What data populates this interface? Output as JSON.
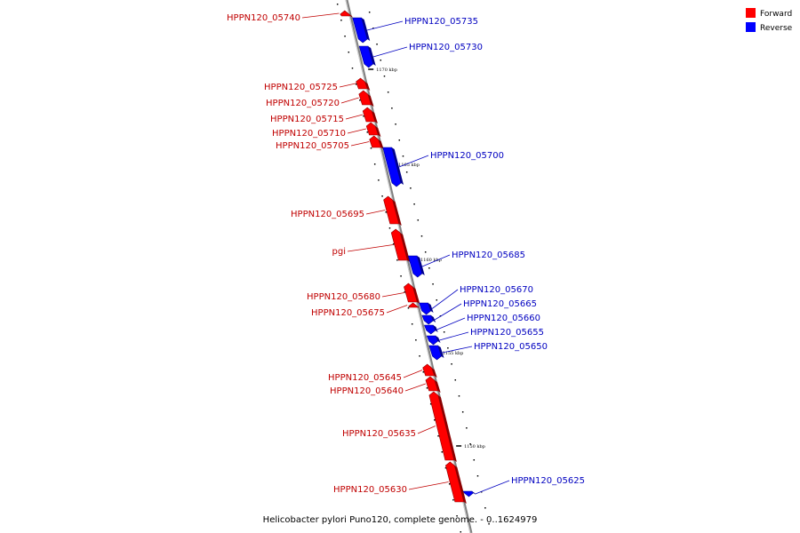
{
  "caption": "Helicobacter pylori Puno120, complete genome. - 0..1624979",
  "legend": {
    "items": [
      {
        "label": "Forward",
        "color": "#ff0000"
      },
      {
        "label": "Reverse",
        "color": "#0000ff"
      }
    ]
  },
  "colors": {
    "forward": "#ff0000",
    "forward_label": "#c00000",
    "reverse": "#0000ff",
    "reverse_label": "#0000c0",
    "backbone": "#808080"
  },
  "ticks": [
    {
      "label": "1170 kbp"
    },
    {
      "label": "1165 kbp"
    },
    {
      "label": "1160 kbp"
    },
    {
      "label": "1155 kbp"
    },
    {
      "label": "1150 kbp"
    }
  ],
  "genes": [
    {
      "label": "HPPN120_05740",
      "strand": "forward"
    },
    {
      "label": "HPPN120_05735",
      "strand": "reverse"
    },
    {
      "label": "HPPN120_05730",
      "strand": "reverse"
    },
    {
      "label": "HPPN120_05725",
      "strand": "forward"
    },
    {
      "label": "HPPN120_05720",
      "strand": "forward"
    },
    {
      "label": "HPPN120_05715",
      "strand": "forward"
    },
    {
      "label": "HPPN120_05710",
      "strand": "forward"
    },
    {
      "label": "HPPN120_05705",
      "strand": "forward"
    },
    {
      "label": "HPPN120_05700",
      "strand": "reverse"
    },
    {
      "label": "HPPN120_05695",
      "strand": "forward"
    },
    {
      "label": "pgi",
      "strand": "forward"
    },
    {
      "label": "HPPN120_05685",
      "strand": "reverse"
    },
    {
      "label": "HPPN120_05680",
      "strand": "forward"
    },
    {
      "label": "HPPN120_05675",
      "strand": "forward"
    },
    {
      "label": "HPPN120_05670",
      "strand": "reverse"
    },
    {
      "label": "HPPN120_05665",
      "strand": "reverse"
    },
    {
      "label": "HPPN120_05660",
      "strand": "reverse"
    },
    {
      "label": "HPPN120_05655",
      "strand": "reverse"
    },
    {
      "label": "HPPN120_05650",
      "strand": "reverse"
    },
    {
      "label": "HPPN120_05645",
      "strand": "forward"
    },
    {
      "label": "HPPN120_05640",
      "strand": "forward"
    },
    {
      "label": "HPPN120_05635",
      "strand": "forward"
    },
    {
      "label": "HPPN120_05630",
      "strand": "forward"
    },
    {
      "label": "HPPN120_05625",
      "strand": "reverse"
    }
  ]
}
